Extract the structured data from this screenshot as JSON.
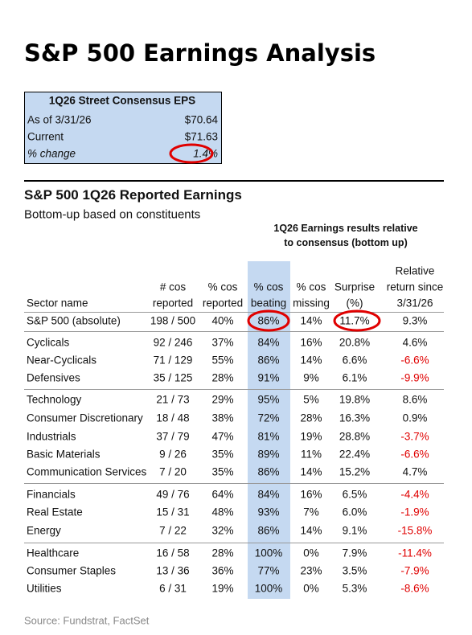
{
  "header": {
    "title": "S&P 500 Earnings Analysis"
  },
  "consensus_box": {
    "title": "1Q26 Street Consensus EPS",
    "rows": [
      [
        "As of 3/31/26",
        "$70.64"
      ],
      [
        "Current",
        "$71.63"
      ],
      [
        "% change",
        "1.4%"
      ]
    ]
  },
  "section": {
    "title": "S&P 500 1Q26 Reported Earnings",
    "subtitle": "Bottom-up based on constituents",
    "group_header": [
      "1Q26 Earnings results relative",
      "to consensus (bottom up)"
    ]
  },
  "table": {
    "columns": [
      [
        "Sector name"
      ],
      [
        "# cos",
        "reported"
      ],
      [
        "% cos",
        "reported"
      ],
      [
        "% cos",
        "beating"
      ],
      [
        "% cos",
        "missing"
      ],
      [
        "Surprise",
        "(%)"
      ],
      [
        "Relative",
        "return since",
        "3/31/26"
      ]
    ],
    "groups": [
      {
        "rows": [
          [
            "S&P 500 (absolute)",
            "198 / 500",
            "40%",
            "86%",
            "14%",
            "11.7%",
            "9.3%"
          ]
        ]
      },
      {
        "rows": [
          [
            "Cyclicals",
            "92 / 246",
            "37%",
            "84%",
            "16%",
            "20.8%",
            "4.6%"
          ],
          [
            "Near-Cyclicals",
            "71 / 129",
            "55%",
            "86%",
            "14%",
            "6.6%",
            "-6.6%"
          ],
          [
            "Defensives",
            "35 / 125",
            "28%",
            "91%",
            "9%",
            "6.1%",
            "-9.9%"
          ]
        ]
      },
      {
        "rows": [
          [
            "Technology",
            "21 / 73",
            "29%",
            "95%",
            "5%",
            "19.8%",
            "8.6%"
          ],
          [
            "Consumer Discretionary",
            "18 / 48",
            "38%",
            "72%",
            "28%",
            "16.3%",
            "0.9%"
          ],
          [
            "Industrials",
            "37 / 79",
            "47%",
            "81%",
            "19%",
            "28.8%",
            "-3.7%"
          ],
          [
            "Basic Materials",
            "9 / 26",
            "35%",
            "89%",
            "11%",
            "22.4%",
            "-6.6%"
          ],
          [
            "Communication Services",
            "7 / 20",
            "35%",
            "86%",
            "14%",
            "15.2%",
            "4.7%"
          ]
        ]
      },
      {
        "rows": [
          [
            "Financials",
            "49 / 76",
            "64%",
            "84%",
            "16%",
            "6.5%",
            "-4.4%"
          ],
          [
            "Real Estate",
            "15 / 31",
            "48%",
            "93%",
            "7%",
            "6.0%",
            "-1.9%"
          ],
          [
            "Energy",
            "7 / 22",
            "32%",
            "86%",
            "14%",
            "9.1%",
            "-15.8%"
          ]
        ]
      },
      {
        "rows": [
          [
            "Healthcare",
            "16 / 58",
            "28%",
            "100%",
            "0%",
            "7.9%",
            "-11.4%"
          ],
          [
            "Consumer Staples",
            "13 / 36",
            "36%",
            "77%",
            "23%",
            "3.5%",
            "-7.9%"
          ],
          [
            "Utilities",
            "6 / 31",
            "19%",
            "100%",
            "0%",
            "5.3%",
            "-8.6%"
          ]
        ]
      }
    ]
  },
  "source": "Source: Fundstrat, FactSet"
}
